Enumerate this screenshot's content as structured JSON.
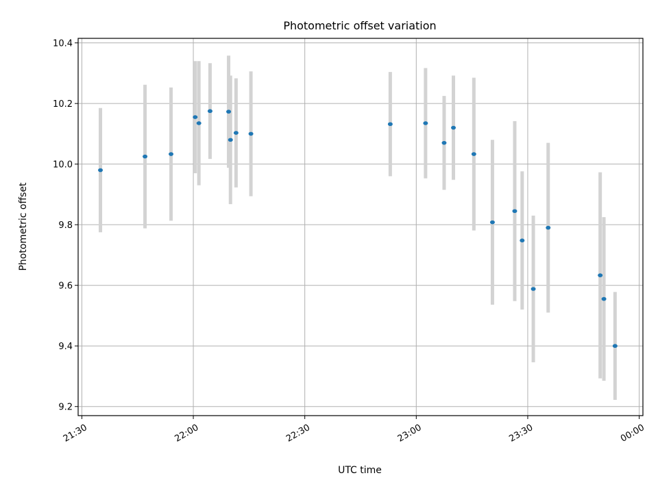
{
  "chart_data": {
    "type": "scatter",
    "title": "Photometric offset variation",
    "xlabel": "UTC time",
    "ylabel": "Photometric offset",
    "xlim": [
      "21:29",
      "00:01"
    ],
    "ylim": [
      9.17,
      10.415
    ],
    "grid": true,
    "xticks": [
      "21:30",
      "22:00",
      "22:30",
      "23:00",
      "23:30",
      "00:00"
    ],
    "yticks": [
      "9.2",
      "9.4",
      "9.6",
      "9.8",
      "10.0",
      "10.2",
      "10.4"
    ],
    "point_color": "#1f77b4",
    "errorbar_color": "#d3d3d3",
    "series": [
      {
        "points": [
          {
            "time": "21:35",
            "y": 9.98,
            "err": 0.205
          },
          {
            "time": "21:47",
            "y": 10.025,
            "err": 0.237
          },
          {
            "time": "21:54",
            "y": 10.033,
            "err": 0.22
          },
          {
            "time": "22:00.5",
            "y": 10.155,
            "err": 0.185
          },
          {
            "time": "22:01.5",
            "y": 10.135,
            "err": 0.205
          },
          {
            "time": "22:04.5",
            "y": 10.175,
            "err": 0.158
          },
          {
            "time": "22:09.5",
            "y": 10.173,
            "err": 0.185
          },
          {
            "time": "22:10",
            "y": 10.08,
            "err": 0.212
          },
          {
            "time": "22:11.5",
            "y": 10.103,
            "err": 0.18
          },
          {
            "time": "22:15.5",
            "y": 10.1,
            "err": 0.206
          },
          {
            "time": "22:53",
            "y": 10.132,
            "err": 0.172
          },
          {
            "time": "23:02.5",
            "y": 10.135,
            "err": 0.182
          },
          {
            "time": "23:07.5",
            "y": 10.07,
            "err": 0.155
          },
          {
            "time": "23:10",
            "y": 10.12,
            "err": 0.172
          },
          {
            "time": "23:15.5",
            "y": 10.033,
            "err": 0.252
          },
          {
            "time": "23:20.5",
            "y": 9.808,
            "err": 0.272
          },
          {
            "time": "23:26.5",
            "y": 9.845,
            "err": 0.297
          },
          {
            "time": "23:28.5",
            "y": 9.748,
            "err": 0.228
          },
          {
            "time": "23:31.5",
            "y": 9.588,
            "err": 0.242
          },
          {
            "time": "23:35.5",
            "y": 9.79,
            "err": 0.28
          },
          {
            "time": "23:49.5",
            "y": 9.633,
            "err": 0.34
          },
          {
            "time": "23:50.5",
            "y": 9.555,
            "err": 0.27
          },
          {
            "time": "23:53.5",
            "y": 9.4,
            "err": 0.178
          }
        ]
      }
    ]
  }
}
